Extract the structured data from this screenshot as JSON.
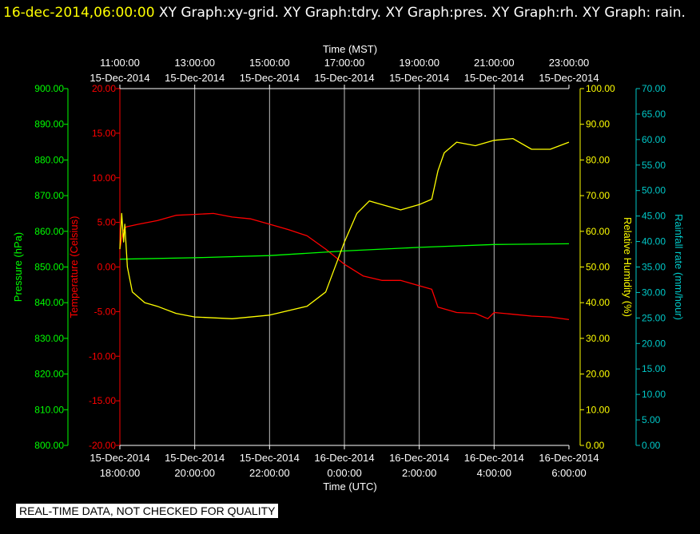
{
  "header": {
    "timestamp": "16-dec-2014,06:00:00",
    "graphs": "XY Graph:xy-grid.  XY Graph:tdry.  XY Graph:pres.  XY Graph:rh.  XY Graph: rain."
  },
  "notice": "REAL-TIME DATA, NOT CHECKED FOR QUALITY",
  "colors": {
    "pressure": "#00ff00",
    "temperature": "#ff0000",
    "humidity": "#ffff00",
    "rain": "#00c8c8",
    "grid": "#ffffff",
    "background": "#000000"
  },
  "chart_data": {
    "type": "line",
    "grid": "vertical",
    "x_top": {
      "label": "Time (MST)",
      "ticks": [
        {
          "time": "11:00:00",
          "date": "15-Dec-2014"
        },
        {
          "time": "13:00:00",
          "date": "15-Dec-2014"
        },
        {
          "time": "15:00:00",
          "date": "15-Dec-2014"
        },
        {
          "time": "17:00:00",
          "date": "15-Dec-2014"
        },
        {
          "time": "19:00:00",
          "date": "15-Dec-2014"
        },
        {
          "time": "21:00:00",
          "date": "15-Dec-2014"
        },
        {
          "time": "23:00:00",
          "date": "15-Dec-2014"
        }
      ]
    },
    "x_bottom": {
      "label": "Time (UTC)",
      "range": [
        "2014-12-15 18:00",
        "2014-12-16 06:00"
      ],
      "ticks": [
        {
          "date": "15-Dec-2014",
          "time": "18:00:00"
        },
        {
          "date": "15-Dec-2014",
          "time": "20:00:00"
        },
        {
          "date": "15-Dec-2014",
          "time": "22:00:00"
        },
        {
          "date": "16-Dec-2014",
          "time": "0:00:00"
        },
        {
          "date": "16-Dec-2014",
          "time": "2:00:00"
        },
        {
          "date": "16-Dec-2014",
          "time": "4:00:00"
        },
        {
          "date": "16-Dec-2014",
          "time": "6:00:00"
        }
      ]
    },
    "y_axes": {
      "pressure": {
        "label": "Pressure (hPa)",
        "range": [
          800,
          900
        ],
        "ticks": [
          "800.00",
          "810.00",
          "820.00",
          "830.00",
          "840.00",
          "850.00",
          "860.00",
          "870.00",
          "880.00",
          "890.00",
          "900.00"
        ]
      },
      "temperature": {
        "label": "Temperature (Celsius)",
        "range": [
          -20,
          20
        ],
        "ticks": [
          "-20.00",
          "-15.00",
          "-10.00",
          "-5.00",
          "0.00",
          "5.00",
          "10.00",
          "15.00",
          "20.00"
        ]
      },
      "humidity": {
        "label": "Relative Humidity (%)",
        "range": [
          0,
          100
        ],
        "ticks": [
          "0.00",
          "10.00",
          "20.00",
          "30.00",
          "40.00",
          "50.00",
          "60.00",
          "70.00",
          "80.00",
          "90.00",
          "100.00"
        ]
      },
      "rain": {
        "label": "Rainfall rate (mm/hour)",
        "range": [
          0,
          70
        ],
        "ticks": [
          "0.00",
          "5.00",
          "10.00",
          "15.00",
          "20.00",
          "25.00",
          "30.00",
          "35.00",
          "40.00",
          "45.00",
          "50.00",
          "55.00",
          "60.00",
          "65.00",
          "70.00"
        ]
      }
    },
    "series": [
      {
        "axis": "temperature",
        "points": [
          [
            "2014-12-15 18:00",
            2.0
          ],
          [
            "2014-12-15 18:05",
            4.0
          ],
          [
            "2014-12-15 18:10",
            4.5
          ],
          [
            "2014-12-15 18:30",
            4.8
          ],
          [
            "2014-12-15 19:00",
            5.2
          ],
          [
            "2014-12-15 19:30",
            5.8
          ],
          [
            "2014-12-15 20:00",
            5.9
          ],
          [
            "2014-12-15 20:30",
            6.0
          ],
          [
            "2014-12-15 21:00",
            5.6
          ],
          [
            "2014-12-15 21:30",
            5.4
          ],
          [
            "2014-12-15 22:00",
            4.8
          ],
          [
            "2014-12-15 22:30",
            4.2
          ],
          [
            "2014-12-15 23:00",
            3.5
          ],
          [
            "2014-12-15 23:30",
            2.0
          ],
          [
            "2014-12-16 00:00",
            0.3
          ],
          [
            "2014-12-16 00:30",
            -1.0
          ],
          [
            "2014-12-16 01:00",
            -1.5
          ],
          [
            "2014-12-16 01:30",
            -1.5
          ],
          [
            "2014-12-16 02:00",
            -2.1
          ],
          [
            "2014-12-16 02:20",
            -2.5
          ],
          [
            "2014-12-16 02:30",
            -4.5
          ],
          [
            "2014-12-16 03:00",
            -5.1
          ],
          [
            "2014-12-16 03:30",
            -5.2
          ],
          [
            "2014-12-16 03:50",
            -5.8
          ],
          [
            "2014-12-16 04:00",
            -5.1
          ],
          [
            "2014-12-16 04:30",
            -5.3
          ],
          [
            "2014-12-16 05:00",
            -5.5
          ],
          [
            "2014-12-16 05:30",
            -5.6
          ],
          [
            "2014-12-16 06:00",
            -5.9
          ]
        ]
      },
      {
        "axis": "pressure",
        "points": [
          [
            "2014-12-15 18:00",
            852.2
          ],
          [
            "2014-12-15 20:00",
            852.6
          ],
          [
            "2014-12-15 22:00",
            853.2
          ],
          [
            "2014-12-16 00:00",
            854.5
          ],
          [
            "2014-12-16 02:00",
            855.5
          ],
          [
            "2014-12-16 04:00",
            856.3
          ],
          [
            "2014-12-16 06:00",
            856.5
          ]
        ]
      },
      {
        "axis": "humidity",
        "points": [
          [
            "2014-12-15 18:00",
            55
          ],
          [
            "2014-12-15 18:03",
            65
          ],
          [
            "2014-12-15 18:06",
            57
          ],
          [
            "2014-12-15 18:08",
            62
          ],
          [
            "2014-12-15 18:12",
            50
          ],
          [
            "2014-12-15 18:20",
            43
          ],
          [
            "2014-12-15 18:40",
            40
          ],
          [
            "2014-12-15 19:00",
            39
          ],
          [
            "2014-12-15 19:30",
            37
          ],
          [
            "2014-12-15 20:00",
            36
          ],
          [
            "2014-12-15 21:00",
            35.5
          ],
          [
            "2014-12-15 22:00",
            36.5
          ],
          [
            "2014-12-15 23:00",
            39
          ],
          [
            "2014-12-15 23:30",
            43
          ],
          [
            "2014-12-16 00:00",
            57
          ],
          [
            "2014-12-16 00:20",
            65
          ],
          [
            "2014-12-16 00:40",
            68.5
          ],
          [
            "2014-12-16 01:00",
            67.5
          ],
          [
            "2014-12-16 01:30",
            66
          ],
          [
            "2014-12-16 02:00",
            67.5
          ],
          [
            "2014-12-16 02:20",
            69
          ],
          [
            "2014-12-16 02:30",
            77
          ],
          [
            "2014-12-16 02:40",
            82
          ],
          [
            "2014-12-16 03:00",
            85
          ],
          [
            "2014-12-16 03:30",
            84
          ],
          [
            "2014-12-16 04:00",
            85.5
          ],
          [
            "2014-12-16 04:30",
            86
          ],
          [
            "2014-12-16 05:00",
            83
          ],
          [
            "2014-12-16 05:30",
            83
          ],
          [
            "2014-12-16 06:00",
            85
          ]
        ]
      }
    ]
  }
}
